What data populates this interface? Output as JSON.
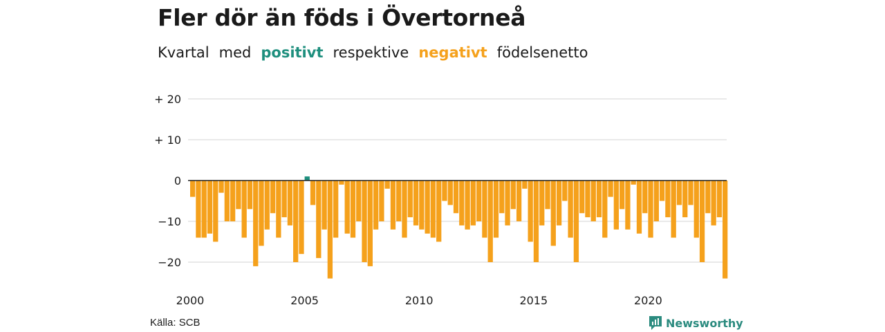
{
  "title": "Fler dör än föds i Övertorneå",
  "subtitle": {
    "w1": "Kvartal",
    "w2": "med",
    "positive_word": "positivt",
    "w3": "respektive",
    "negative_word": "negativt",
    "w4": "födelsenetto"
  },
  "source": "Källa: SCB",
  "brand": "Newsworthy",
  "colors": {
    "positive": "#1e8f7e",
    "negative": "#f5a11c",
    "grid": "#e2e2e2",
    "zero_line": "#222222",
    "brand": "#2b8b7f"
  },
  "chart_data": {
    "type": "bar",
    "x_start_year": 2000,
    "periods_per_year": 4,
    "ylim": [
      -25,
      22
    ],
    "yticks": [
      {
        "value": 20,
        "label": "+ 20"
      },
      {
        "value": 10,
        "label": "+ 10"
      },
      {
        "value": 0,
        "label": "0"
      },
      {
        "value": -10,
        "label": "−10"
      },
      {
        "value": -20,
        "label": "−20"
      }
    ],
    "xticks": [
      "2000",
      "2005",
      "2010",
      "2015",
      "2020"
    ],
    "grid": true,
    "legend": "none",
    "values": [
      -4,
      -14,
      -14,
      -13,
      -15,
      -3,
      -10,
      -10,
      -7,
      -14,
      -7,
      -21,
      -16,
      -12,
      -8,
      -14,
      -9,
      -11,
      -20,
      -18,
      1,
      -6,
      -19,
      -12,
      -24,
      -14,
      -1,
      -13,
      -14,
      -10,
      -20,
      -21,
      -12,
      -10,
      -2,
      -12,
      -10,
      -14,
      -9,
      -11,
      -12,
      -13,
      -14,
      -15,
      -5,
      -6,
      -8,
      -11,
      -12,
      -11,
      -10,
      -14,
      -20,
      -14,
      -8,
      -11,
      -7,
      -10,
      -2,
      -15,
      -20,
      -11,
      -7,
      -16,
      -11,
      -5,
      -14,
      -20,
      -8,
      -9,
      -10,
      -9,
      -14,
      -4,
      -12,
      -7,
      -12,
      -1,
      -13,
      -8,
      -14,
      -10,
      -5,
      -9,
      -14,
      -6,
      -9,
      -6,
      -14,
      -20,
      -8,
      -11,
      -9,
      -24
    ]
  }
}
